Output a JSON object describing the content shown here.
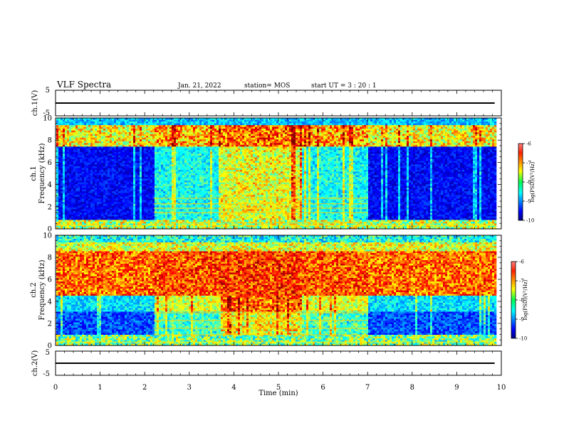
{
  "header": {
    "title": "VLF Spectra",
    "date": "Jan. 21, 2022",
    "station": "station= MOS",
    "start": "start UT =  3 : 20 : 1"
  },
  "chart_data": [
    {
      "type": "line",
      "panel": "ch1-waveform",
      "ylabel": "ch.1(V)",
      "ylim": [
        -5,
        5
      ],
      "yticks": [
        "5",
        "-5"
      ],
      "xlim": [
        0,
        10
      ],
      "series": [
        {
          "x": [
            0,
            9.85
          ],
          "values": [
            0,
            0
          ]
        }
      ]
    },
    {
      "type": "heatmap",
      "panel": "ch1-spectrogram",
      "ylabel": "ch.1",
      "ylabel2": "Frequency (kHz)",
      "ylim": [
        0,
        10
      ],
      "yticks": [
        "0",
        "2",
        "4",
        "6",
        "8",
        "10"
      ],
      "xlim": [
        0,
        10
      ],
      "data_end_min": 9.85,
      "colorbar": {
        "label": "log(PSD)(V²/Hz)",
        "range": [
          -10,
          -6
        ],
        "ticks": [
          "-6",
          "-7",
          "-8",
          "-9",
          "-10"
        ]
      }
    },
    {
      "type": "heatmap",
      "panel": "ch2-spectrogram",
      "ylabel": "ch.2",
      "ylabel2": "Frequency (kHz)",
      "ylim": [
        0,
        10
      ],
      "yticks": [
        "0",
        "2",
        "4",
        "6",
        "8",
        "10"
      ],
      "xlim": [
        0,
        10
      ],
      "data_end_min": 9.85,
      "colorbar": {
        "label": "log(PSD)(V²/Hz)",
        "range": [
          -10,
          -6
        ],
        "ticks": [
          "-6",
          "-7",
          "-8",
          "-9",
          "-10"
        ]
      }
    },
    {
      "type": "line",
      "panel": "ch2-waveform",
      "ylabel": "ch.2(V)",
      "ylim": [
        -5,
        5
      ],
      "yticks": [
        "5",
        "-5"
      ],
      "xlim": [
        0,
        10
      ],
      "xlabel": "Time (min)",
      "xticks": [
        "0",
        "1",
        "2",
        "3",
        "4",
        "5",
        "6",
        "7",
        "8",
        "9",
        "10"
      ],
      "series": [
        {
          "x": [
            0,
            9.85
          ],
          "values": [
            0,
            0
          ]
        }
      ]
    }
  ]
}
